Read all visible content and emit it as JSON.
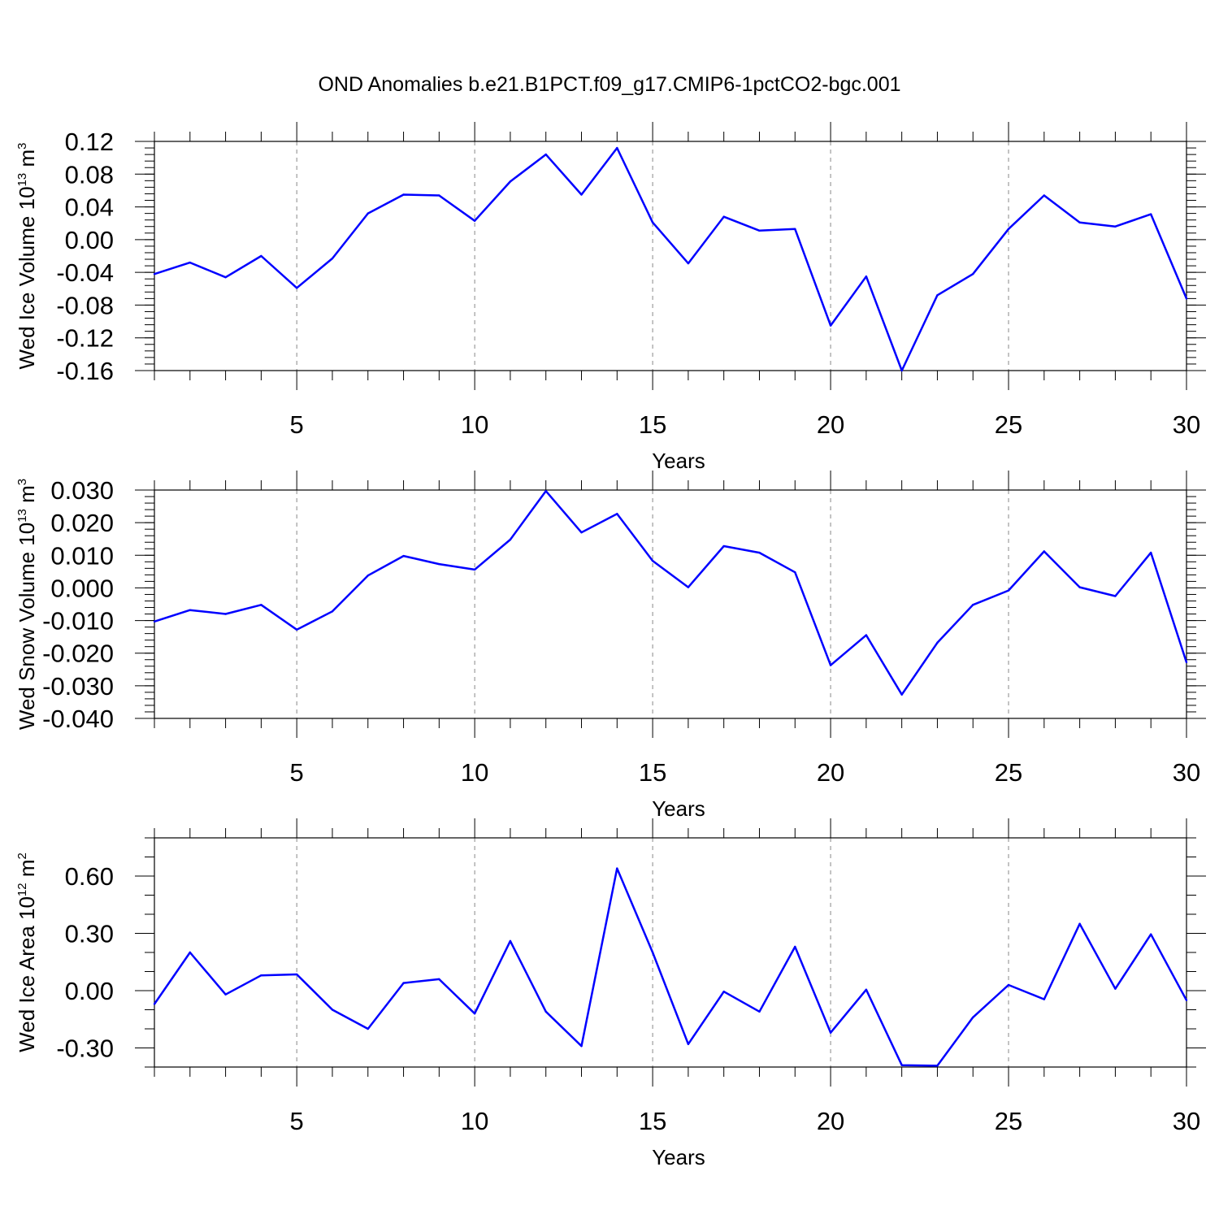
{
  "title": "OND Anomalies b.e21.B1PCT.f09_g17.CMIP6-1pctCO2-bgc.001",
  "colors": {
    "line": "#0000ff",
    "grid": "#888888",
    "axis": "#000000"
  },
  "chart_data": [
    {
      "type": "line",
      "ylabel_main": "Wed Ice Volume 10",
      "ylabel_exp": "13",
      "ylabel_unit": " m",
      "ylabel_unit_exp": "3",
      "xlabel": "Years",
      "xlim": [
        1,
        30
      ],
      "ylim": [
        -0.16,
        0.12
      ],
      "x_ticks": [
        5,
        10,
        15,
        20,
        25,
        30
      ],
      "x_tick_labels": [
        "5",
        "10",
        "15",
        "20",
        "25",
        "30"
      ],
      "y_ticks": [
        -0.16,
        -0.12,
        -0.08,
        -0.04,
        0.0,
        0.04,
        0.08,
        0.12
      ],
      "y_tick_labels": [
        "-0.16",
        "-0.12",
        "-0.08",
        "-0.04",
        "0.00",
        "0.04",
        "0.08",
        "0.12"
      ],
      "y_minor_step": 0.008,
      "grid_x": [
        5,
        10,
        15,
        20,
        25
      ],
      "x": [
        1,
        2,
        3,
        4,
        5,
        6,
        7,
        8,
        9,
        10,
        11,
        12,
        13,
        14,
        15,
        16,
        17,
        18,
        19,
        20,
        21,
        22,
        23,
        24,
        25,
        26,
        27,
        28,
        29,
        30
      ],
      "values": [
        -0.042,
        -0.028,
        -0.046,
        -0.02,
        -0.059,
        -0.023,
        0.032,
        0.055,
        0.054,
        0.023,
        0.071,
        0.104,
        0.055,
        0.112,
        0.021,
        -0.029,
        0.028,
        0.011,
        0.013,
        -0.105,
        -0.045,
        -0.16,
        -0.068,
        -0.042,
        0.013,
        0.054,
        0.021,
        0.016,
        0.031,
        -0.072
      ]
    },
    {
      "type": "line",
      "ylabel_main": "Wed Snow Volume 10",
      "ylabel_exp": "13",
      "ylabel_unit": " m",
      "ylabel_unit_exp": "3",
      "xlabel": "Years",
      "xlim": [
        1,
        30
      ],
      "ylim": [
        -0.04,
        0.03
      ],
      "x_ticks": [
        5,
        10,
        15,
        20,
        25,
        30
      ],
      "x_tick_labels": [
        "5",
        "10",
        "15",
        "20",
        "25",
        "30"
      ],
      "y_ticks": [
        -0.04,
        -0.03,
        -0.02,
        -0.01,
        0.0,
        0.01,
        0.02,
        0.03
      ],
      "y_tick_labels": [
        "-0.040",
        "-0.030",
        "-0.020",
        "-0.010",
        "0.000",
        "0.010",
        "0.020",
        "0.030"
      ],
      "y_minor_step": 0.002,
      "grid_x": [
        5,
        10,
        15,
        20,
        25
      ],
      "x": [
        1,
        2,
        3,
        4,
        5,
        6,
        7,
        8,
        9,
        10,
        11,
        12,
        13,
        14,
        15,
        16,
        17,
        18,
        19,
        20,
        21,
        22,
        23,
        24,
        25,
        26,
        27,
        28,
        29,
        30
      ],
      "values": [
        -0.0103,
        -0.0068,
        -0.008,
        -0.0052,
        -0.0128,
        -0.0072,
        0.0038,
        0.0098,
        0.0073,
        0.0056,
        0.0148,
        0.0297,
        0.017,
        0.0227,
        0.0083,
        0.0002,
        0.0128,
        0.0108,
        0.0048,
        -0.0237,
        -0.0145,
        -0.0327,
        -0.0168,
        -0.0052,
        -0.0008,
        0.0112,
        0.0002,
        -0.0025,
        0.0108,
        -0.0228
      ]
    },
    {
      "type": "line",
      "ylabel_main": "Wed Ice Area 10",
      "ylabel_exp": "12",
      "ylabel_unit": " m",
      "ylabel_unit_exp": "2",
      "xlabel": "Years",
      "xlim": [
        1,
        30
      ],
      "ylim": [
        -0.4,
        0.8
      ],
      "x_ticks": [
        5,
        10,
        15,
        20,
        25,
        30
      ],
      "x_tick_labels": [
        "5",
        "10",
        "15",
        "20",
        "25",
        "30"
      ],
      "y_ticks": [
        -0.3,
        0.0,
        0.3,
        0.6
      ],
      "y_tick_labels": [
        "-0.30",
        "0.00",
        "0.30",
        "0.60"
      ],
      "y_minor_step": 0.1,
      "grid_x": [
        5,
        10,
        15,
        20,
        25
      ],
      "x": [
        1,
        2,
        3,
        4,
        5,
        6,
        7,
        8,
        9,
        10,
        11,
        12,
        13,
        14,
        15,
        16,
        17,
        18,
        19,
        20,
        21,
        22,
        23,
        24,
        25,
        26,
        27,
        28,
        29,
        30
      ],
      "values": [
        -0.07,
        0.2,
        -0.02,
        0.08,
        0.085,
        -0.1,
        -0.2,
        0.04,
        0.06,
        -0.12,
        0.26,
        -0.11,
        -0.29,
        0.64,
        0.2,
        -0.28,
        -0.005,
        -0.11,
        0.23,
        -0.22,
        0.005,
        -0.39,
        -0.393,
        -0.14,
        0.03,
        -0.045,
        0.35,
        0.01,
        0.295,
        -0.05
      ]
    }
  ]
}
